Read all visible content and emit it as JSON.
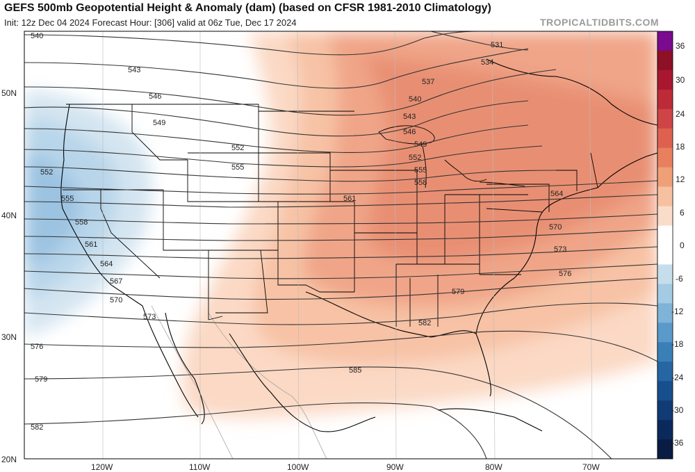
{
  "header": {
    "title": "GEFS 500mb Geopotential Height & Anomaly (dam) (based on CFSR 1981-2010 Climatology)",
    "subtitle": "Init: 12z Dec 04 2024   Forecast Hour: [306]   valid at 06z Tue, Dec 17 2024",
    "source": "TROPICALTIDBITS.COM"
  },
  "map": {
    "lat_labels": [
      "50N",
      "40N",
      "30N",
      "20N"
    ],
    "lon_labels": [
      "120W",
      "110W",
      "100W",
      "90W",
      "80W",
      "70W"
    ],
    "contours": [
      {
        "value": "531",
        "label": "531"
      },
      {
        "value": "534",
        "label": "534"
      },
      {
        "value": "537",
        "label": "537"
      },
      {
        "value": "540",
        "label": "540"
      },
      {
        "value": "543",
        "label": "543"
      },
      {
        "value": "546",
        "label": "546"
      },
      {
        "value": "549",
        "label": "549"
      },
      {
        "value": "552",
        "label": "552"
      },
      {
        "value": "555",
        "label": "555"
      },
      {
        "value": "558",
        "label": "558"
      },
      {
        "value": "561",
        "label": "561"
      },
      {
        "value": "564",
        "label": "564"
      },
      {
        "value": "567",
        "label": "567"
      },
      {
        "value": "570",
        "label": "570"
      },
      {
        "value": "573",
        "label": "573"
      },
      {
        "value": "576",
        "label": "576"
      },
      {
        "value": "579",
        "label": "579"
      },
      {
        "value": "582",
        "label": "582"
      },
      {
        "value": "585",
        "label": "585"
      }
    ]
  },
  "colorbar": {
    "labels": [
      "36",
      "30",
      "24",
      "18",
      "12",
      "6",
      "0",
      "-6",
      "-12",
      "-18",
      "-24",
      "-30",
      "-36"
    ],
    "colors": [
      "#7a0a8e",
      "#8c1026",
      "#a8172f",
      "#bd2a38",
      "#cf4446",
      "#de6150",
      "#e8805f",
      "#f0a077",
      "#f6c1a0",
      "#fadcca",
      "#ffffff",
      "#ffffff",
      "#c6deec",
      "#a3cbe3",
      "#7fb3d8",
      "#5a99c9",
      "#3b7fb7",
      "#2566a3",
      "#174f8c",
      "#103b74",
      "#0b2a5c",
      "#081c44"
    ]
  }
}
